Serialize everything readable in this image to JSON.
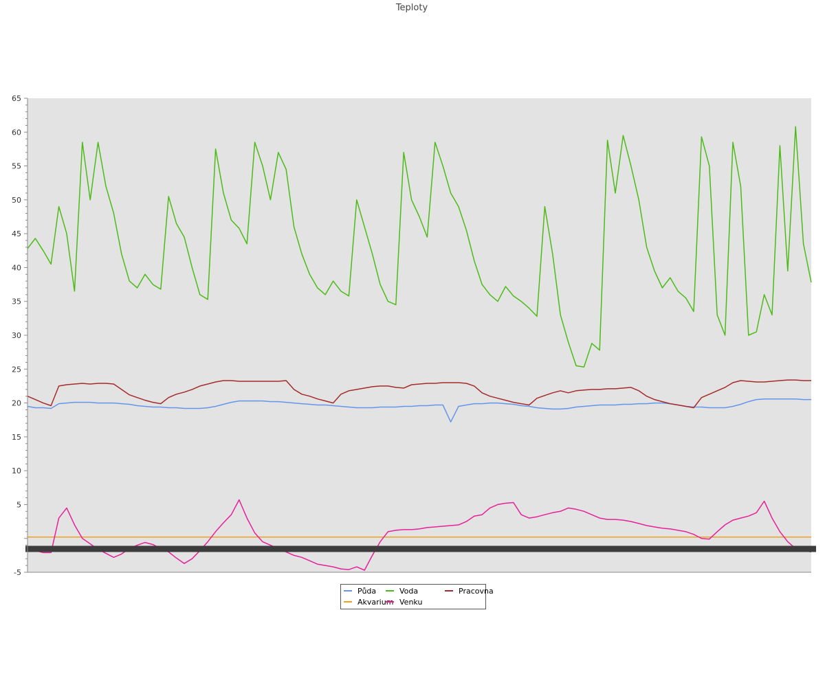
{
  "chart_data": {
    "type": "line",
    "title": "Teploty",
    "xlabel": "",
    "ylabel": "",
    "ylim": [
      -5,
      65
    ],
    "y_ticks": [
      "-5",
      "5",
      "10",
      "15",
      "20",
      "25",
      "30",
      "35",
      "40",
      "45",
      "50",
      "55",
      "60",
      "65"
    ],
    "grid": false,
    "background": "#e3e3e3",
    "legend": "bottom-center",
    "x": [
      0,
      1,
      2,
      3,
      4,
      5,
      6,
      7,
      8,
      9,
      10,
      11,
      12,
      13,
      14,
      15,
      16,
      17,
      18,
      19,
      20,
      21,
      22,
      23,
      24,
      25,
      26,
      27,
      28,
      29,
      30,
      31,
      32,
      33,
      34,
      35,
      36,
      37,
      38,
      39,
      40,
      41,
      42,
      43,
      44,
      45,
      46,
      47,
      48,
      49,
      50,
      51,
      52,
      53,
      54,
      55,
      56,
      57,
      58,
      59,
      60,
      61,
      62,
      63,
      64,
      65,
      66,
      67,
      68,
      69,
      70,
      71,
      72,
      73,
      74,
      75,
      76,
      77,
      78,
      79,
      80,
      81,
      82,
      83,
      84,
      85,
      86,
      87,
      88,
      89,
      90,
      91,
      92,
      93,
      94,
      95,
      96,
      97,
      98,
      99,
      100
    ],
    "series": [
      {
        "name": "Půda",
        "color": "#6495ed",
        "values": [
          19.5,
          19.3,
          19.3,
          19.2,
          19.9,
          20.0,
          20.1,
          20.1,
          20.1,
          20.0,
          20.0,
          20.0,
          19.9,
          19.8,
          19.6,
          19.5,
          19.4,
          19.4,
          19.3,
          19.3,
          19.2,
          19.2,
          19.2,
          19.3,
          19.5,
          19.8,
          20.1,
          20.3,
          20.3,
          20.3,
          20.3,
          20.2,
          20.2,
          20.1,
          20.0,
          19.9,
          19.8,
          19.7,
          19.7,
          19.6,
          19.5,
          19.4,
          19.3,
          19.3,
          19.3,
          19.4,
          19.4,
          19.4,
          19.5,
          19.5,
          19.6,
          19.6,
          19.7,
          19.7,
          17.2,
          19.5,
          19.7,
          19.9,
          19.9,
          20.0,
          20.0,
          19.9,
          19.8,
          19.6,
          19.5,
          19.3,
          19.2,
          19.1,
          19.1,
          19.2,
          19.4,
          19.5,
          19.6,
          19.7,
          19.7,
          19.7,
          19.8,
          19.8,
          19.9,
          19.9,
          20.0,
          20.0,
          19.9,
          19.7,
          19.5,
          19.4,
          19.4,
          19.3,
          19.3,
          19.3,
          19.5,
          19.8,
          20.2,
          20.5,
          20.6,
          20.6,
          20.6,
          20.6,
          20.6,
          20.5,
          20.5
        ]
      },
      {
        "name": "Voda",
        "color": "#4cbb17",
        "values": [
          42.8,
          44.3,
          42.5,
          40.5,
          49.0,
          45.0,
          36.5,
          58.5,
          50.0,
          58.5,
          52.0,
          48.0,
          42.0,
          38.0,
          37.0,
          39.0,
          37.5,
          36.8,
          50.5,
          46.5,
          44.5,
          40.0,
          36.0,
          35.3,
          57.5,
          51.0,
          47.0,
          45.8,
          43.5,
          58.5,
          55.0,
          50.0,
          57.0,
          54.5,
          46.0,
          42.0,
          39.0,
          37.0,
          36.0,
          38.0,
          36.5,
          35.8,
          50.0,
          46.0,
          42.0,
          37.5,
          35.0,
          34.5,
          57.0,
          50.0,
          47.5,
          44.5,
          58.5,
          55.0,
          51.0,
          49.0,
          45.5,
          41.0,
          37.5,
          36.0,
          35.0,
          37.2,
          35.8,
          35.0,
          34.0,
          32.8,
          49.0,
          42.0,
          33.0,
          29.0,
          25.5,
          25.3,
          28.8,
          27.8,
          58.8,
          51.0,
          59.5,
          55.0,
          50.0,
          43.0,
          39.5,
          37.0,
          38.5,
          36.5,
          35.5,
          33.5,
          59.3,
          55.0,
          33.0,
          30.0,
          58.5,
          52.0,
          30.0,
          30.5,
          36.0,
          33.0,
          58.0,
          39.5,
          60.8,
          43.5,
          37.8
        ]
      },
      {
        "name": "Pracovna",
        "color": "#a52a2a",
        "values": [
          21.0,
          20.5,
          20.0,
          19.6,
          22.5,
          22.7,
          22.8,
          22.9,
          22.8,
          22.9,
          22.9,
          22.8,
          22.0,
          21.2,
          20.8,
          20.4,
          20.1,
          19.9,
          20.8,
          21.3,
          21.6,
          22.0,
          22.5,
          22.8,
          23.1,
          23.3,
          23.3,
          23.2,
          23.2,
          23.2,
          23.2,
          23.2,
          23.2,
          23.3,
          22.0,
          21.3,
          21.0,
          20.6,
          20.3,
          20.0,
          21.3,
          21.8,
          22.0,
          22.2,
          22.4,
          22.5,
          22.5,
          22.3,
          22.2,
          22.7,
          22.8,
          22.9,
          22.9,
          23.0,
          23.0,
          23.0,
          22.9,
          22.5,
          21.5,
          21.0,
          20.7,
          20.4,
          20.1,
          19.9,
          19.7,
          20.7,
          21.1,
          21.5,
          21.8,
          21.5,
          21.8,
          21.9,
          22.0,
          22.0,
          22.1,
          22.1,
          22.2,
          22.3,
          21.8,
          21.0,
          20.5,
          20.2,
          19.9,
          19.7,
          19.5,
          19.3,
          20.8,
          21.3,
          21.8,
          22.3,
          23.0,
          23.3,
          23.2,
          23.1,
          23.1,
          23.2,
          23.3,
          23.4,
          23.4,
          23.3,
          23.3
        ]
      },
      {
        "name": "Akvarium",
        "color": "#f0a020",
        "values": [
          0.2,
          0.2,
          0.2,
          0.2,
          0.2,
          0.2,
          0.2,
          0.2,
          0.2,
          0.2,
          0.2,
          0.2,
          0.2,
          0.2,
          0.2,
          0.2,
          0.2,
          0.2,
          0.2,
          0.2,
          0.2,
          0.2,
          0.2,
          0.2,
          0.2,
          0.2,
          0.2,
          0.2,
          0.2,
          0.2,
          0.2,
          0.2,
          0.2,
          0.2,
          0.2,
          0.2,
          0.2,
          0.2,
          0.2,
          0.2,
          0.2,
          0.2,
          0.2,
          0.2,
          0.2,
          0.2,
          0.2,
          0.2,
          0.2,
          0.2,
          0.2,
          0.2,
          0.2,
          0.2,
          0.2,
          0.2,
          0.2,
          0.2,
          0.2,
          0.2,
          0.2,
          0.2,
          0.2,
          0.2,
          0.2,
          0.2,
          0.2,
          0.2,
          0.2,
          0.2,
          0.2,
          0.2,
          0.2,
          0.2,
          0.2,
          0.2,
          0.2,
          0.2,
          0.2,
          0.2,
          0.2,
          0.2,
          0.2,
          0.2,
          0.2,
          0.2,
          0.2,
          0.2,
          0.2,
          0.2,
          0.2,
          0.2,
          0.2,
          0.2,
          0.2,
          0.2,
          0.2,
          0.2,
          0.2,
          0.2,
          0.2
        ]
      },
      {
        "name": "Venku",
        "color": "#e6209a",
        "values": [
          -1.3,
          -1.8,
          -2.1,
          -2.1,
          3.0,
          4.5,
          2.0,
          0.0,
          -0.8,
          -1.6,
          -2.2,
          -2.8,
          -2.3,
          -1.5,
          -1.0,
          -0.6,
          -0.9,
          -1.5,
          -2.0,
          -2.9,
          -3.7,
          -3.0,
          -1.8,
          -0.5,
          1.0,
          2.3,
          3.5,
          5.7,
          3.0,
          0.8,
          -0.5,
          -1.0,
          -1.5,
          -2.0,
          -2.5,
          -2.8,
          -3.3,
          -3.8,
          -4.0,
          -4.2,
          -4.5,
          -4.6,
          -4.2,
          -4.7,
          -2.5,
          -0.5,
          1.0,
          1.2,
          1.3,
          1.3,
          1.4,
          1.6,
          1.7,
          1.8,
          1.9,
          2.0,
          2.5,
          3.3,
          3.5,
          4.5,
          5.0,
          5.2,
          5.3,
          3.5,
          3.0,
          3.2,
          3.5,
          3.8,
          4.0,
          4.5,
          4.3,
          4.0,
          3.5,
          3.0,
          2.8,
          2.8,
          2.7,
          2.5,
          2.2,
          1.9,
          1.7,
          1.5,
          1.4,
          1.2,
          1.0,
          0.6,
          0.0,
          -0.1,
          1.0,
          2.0,
          2.7,
          3.0,
          3.3,
          3.8,
          5.5,
          3.0,
          1.0,
          -0.5,
          -1.5,
          -1.8,
          -2.0
        ]
      }
    ]
  }
}
